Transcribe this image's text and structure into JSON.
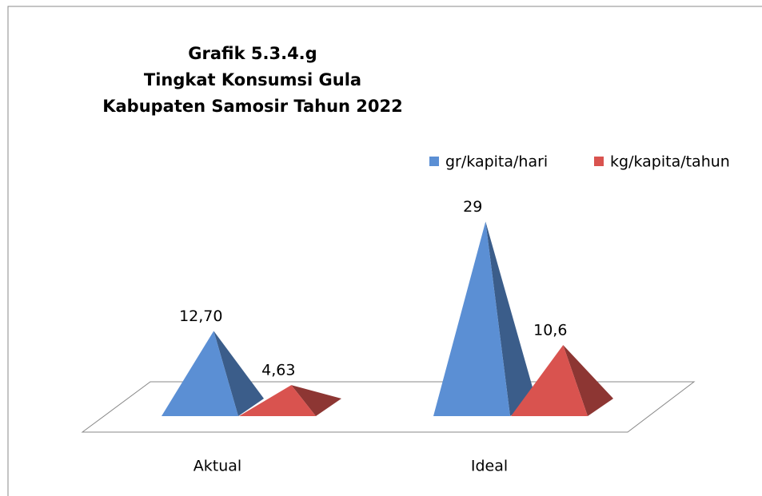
{
  "chart_data": {
    "type": "pyramid3d",
    "title": [
      "Grafik 5.3.4.g",
      "Tingkat Konsumsi Gula",
      "Kabupaten Samosir Tahun 2022"
    ],
    "categories": [
      "Aktual",
      "Ideal"
    ],
    "series": [
      {
        "name": "gr/kapita/hari",
        "color": "#5b8fd4",
        "values": [
          12.7,
          29
        ],
        "value_labels": [
          "12,70",
          "29"
        ]
      },
      {
        "name": "kg/kapita/tahun",
        "color": "#d9534f",
        "values": [
          4.63,
          10.6
        ],
        "value_labels": [
          "4,63",
          "10,6"
        ]
      }
    ],
    "legend": "top-right"
  }
}
